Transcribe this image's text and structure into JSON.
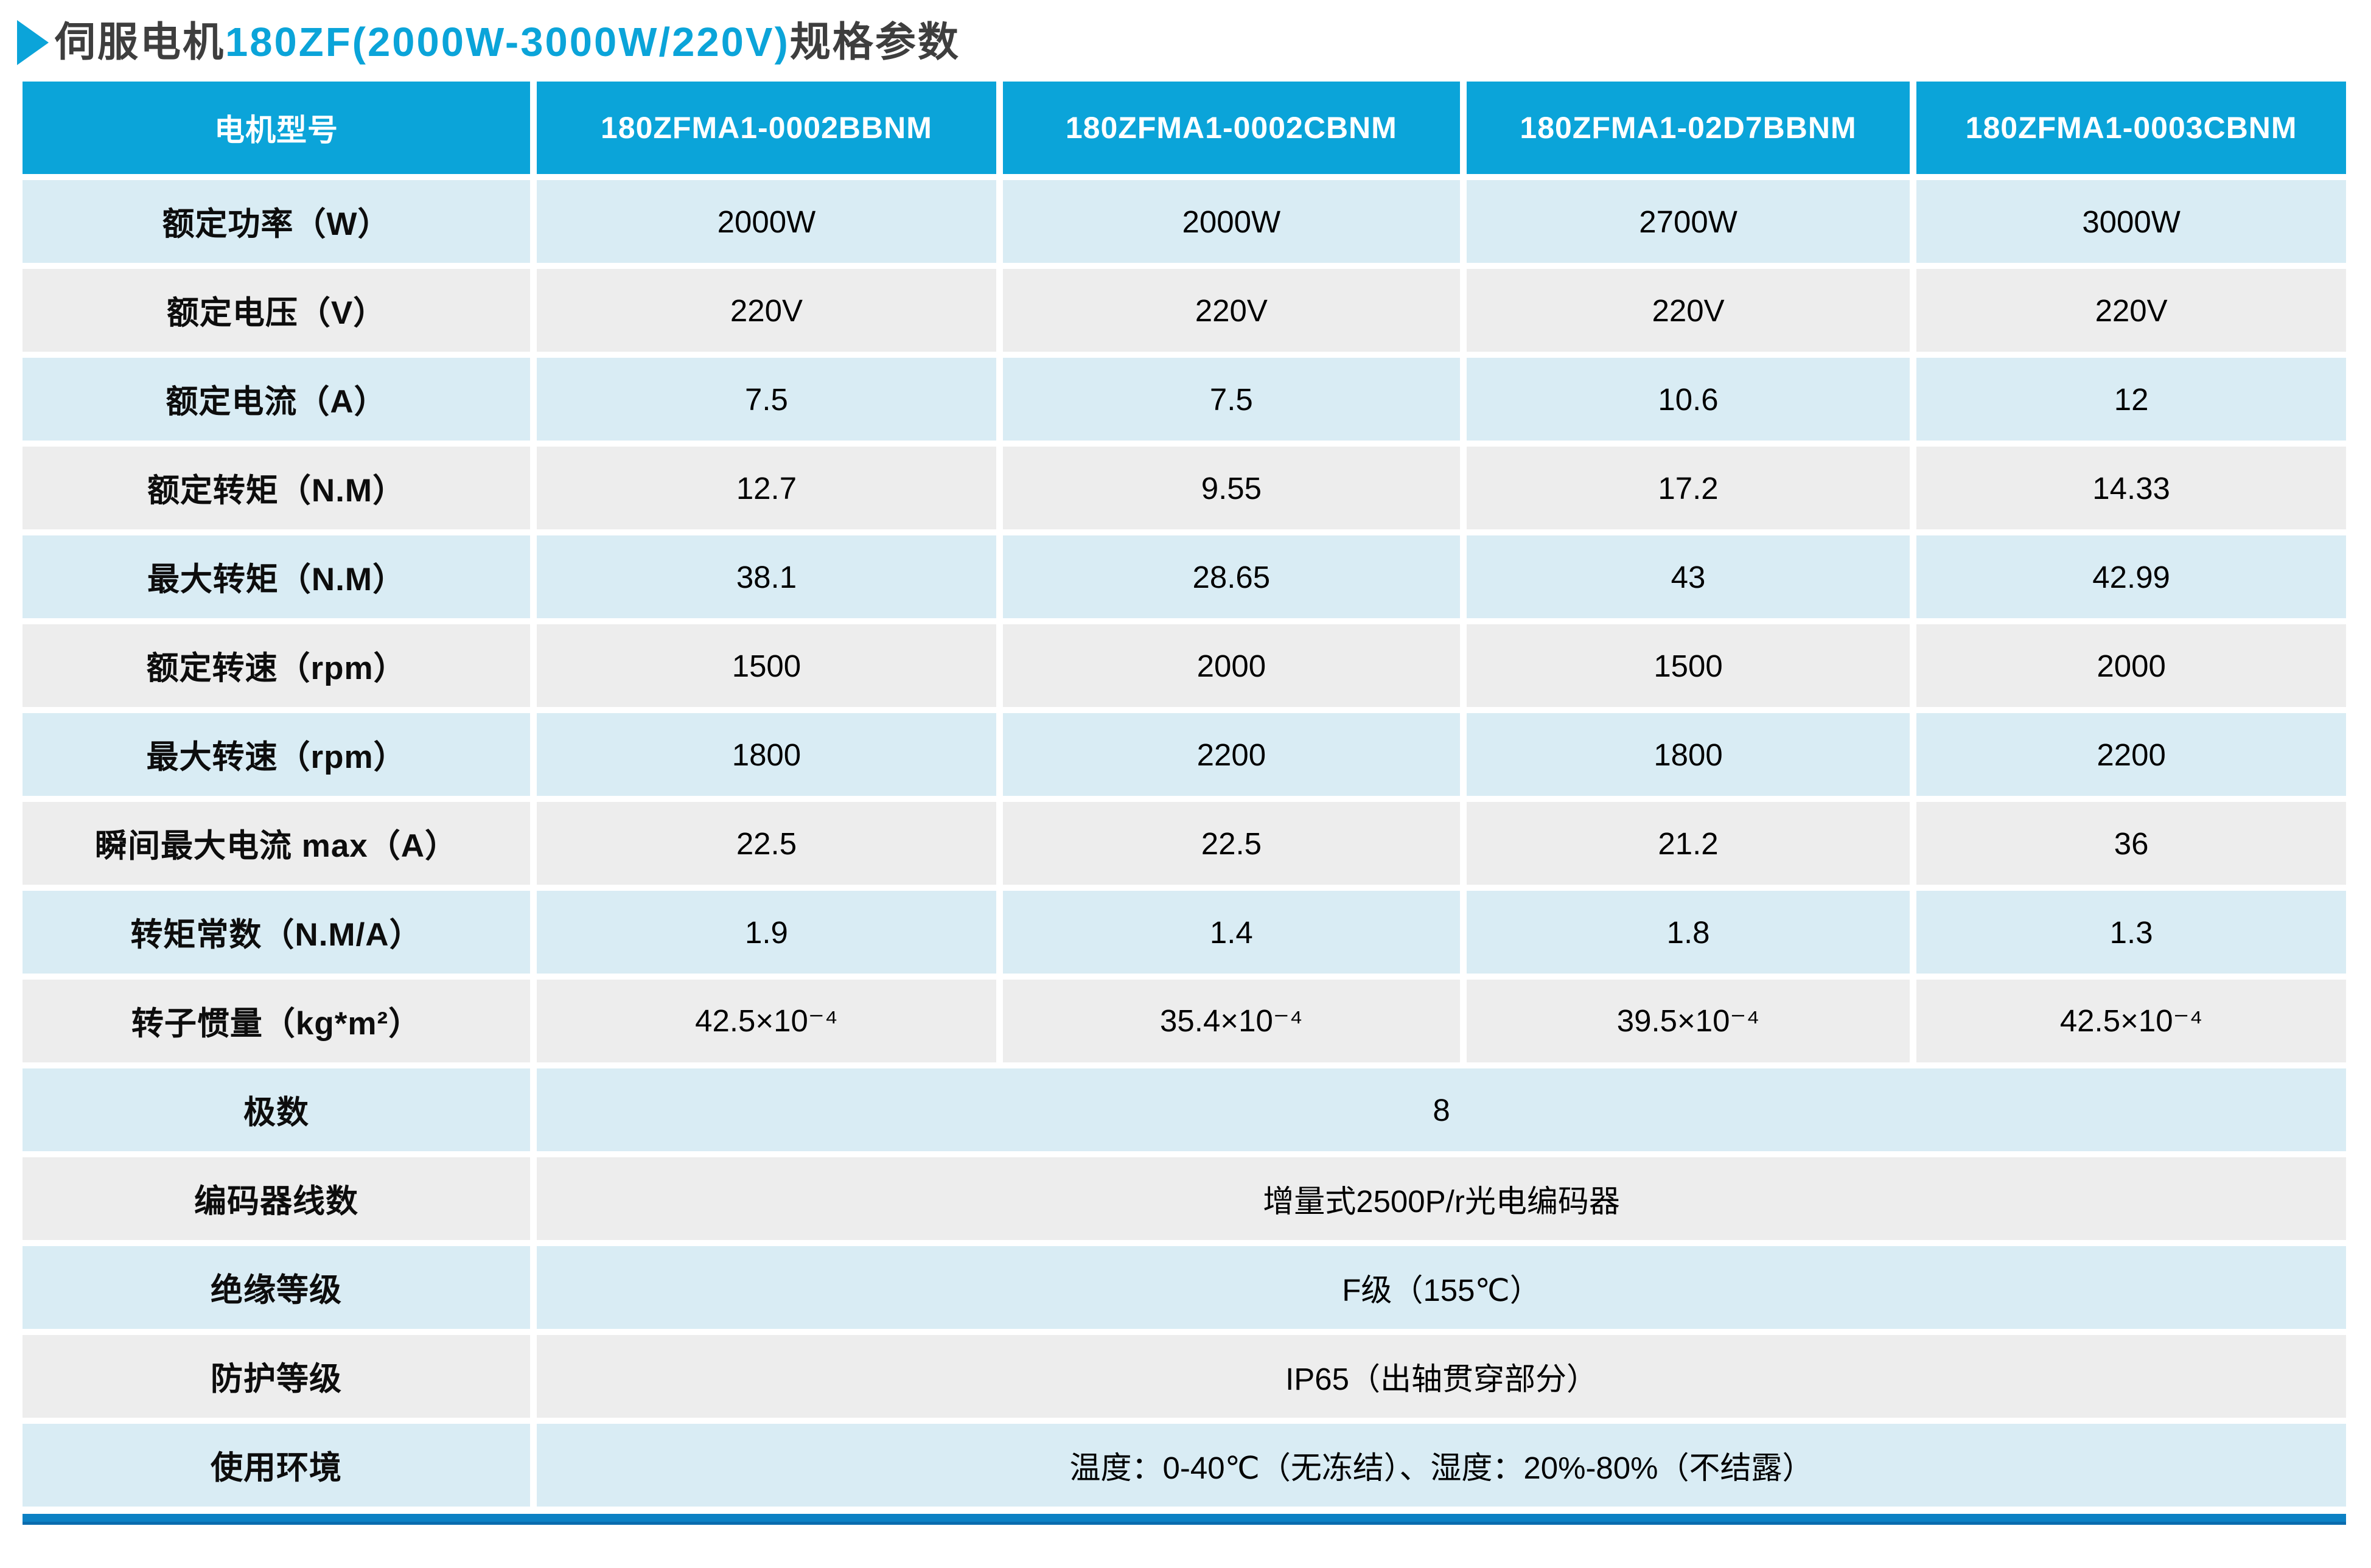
{
  "title": {
    "prefix": "伺服电机",
    "highlight": "180ZF(2000W-3000W/220V)",
    "suffix": "规格参数"
  },
  "colors": {
    "accent_cyan": "#0ba4d9",
    "header_bg": "#0ba4d9",
    "row_light_blue": "#d9ecf4",
    "row_light_gray": "#ededed",
    "bottom_bar_blue": "#0c81c4",
    "title_dark": "#3e3e3e",
    "cell_text": "#000000"
  },
  "table": {
    "header": [
      "电机型号",
      "180ZFMA1-0002BBNM",
      "180ZFMA1-0002CBNM",
      "180ZFMA1-02D7BBNM",
      "180ZFMA1-0003CBNM"
    ],
    "rows": [
      {
        "label": "额定功率（W）",
        "values": [
          "2000W",
          "2000W",
          "2700W",
          "3000W"
        ]
      },
      {
        "label": "额定电压（V）",
        "values": [
          "220V",
          "220V",
          "220V",
          "220V"
        ]
      },
      {
        "label": "额定电流（A）",
        "values": [
          "7.5",
          "7.5",
          "10.6",
          "12"
        ]
      },
      {
        "label": "额定转矩（N.M）",
        "values": [
          "12.7",
          "9.55",
          "17.2",
          "14.33"
        ]
      },
      {
        "label": "最大转矩（N.M）",
        "values": [
          "38.1",
          "28.65",
          "43",
          "42.99"
        ]
      },
      {
        "label": "额定转速（rpm）",
        "values": [
          "1500",
          "2000",
          "1500",
          "2000"
        ]
      },
      {
        "label": "最大转速（rpm）",
        "values": [
          "1800",
          "2200",
          "1800",
          "2200"
        ]
      },
      {
        "label": "瞬间最大电流 max（A）",
        "values": [
          "22.5",
          "22.5",
          "21.2",
          "36"
        ]
      },
      {
        "label": "转矩常数（N.M/A）",
        "values": [
          "1.9",
          "1.4",
          "1.8",
          "1.3"
        ]
      },
      {
        "label": "转子惯量（kg*m²）",
        "values": [
          "42.5×10⁻⁴",
          "35.4×10⁻⁴",
          "39.5×10⁻⁴",
          "42.5×10⁻⁴"
        ]
      },
      {
        "label": "极数",
        "span": "8"
      },
      {
        "label": "编码器线数",
        "span": "增量式2500P/r光电编码器"
      },
      {
        "label": "绝缘等级",
        "span": "F级（155℃）"
      },
      {
        "label": "防护等级",
        "span": "IP65（出轴贯穿部分）"
      },
      {
        "label": "使用环境",
        "span": "温度：0-40℃（无冻结）、湿度：20%-80%（不结露）"
      }
    ]
  }
}
